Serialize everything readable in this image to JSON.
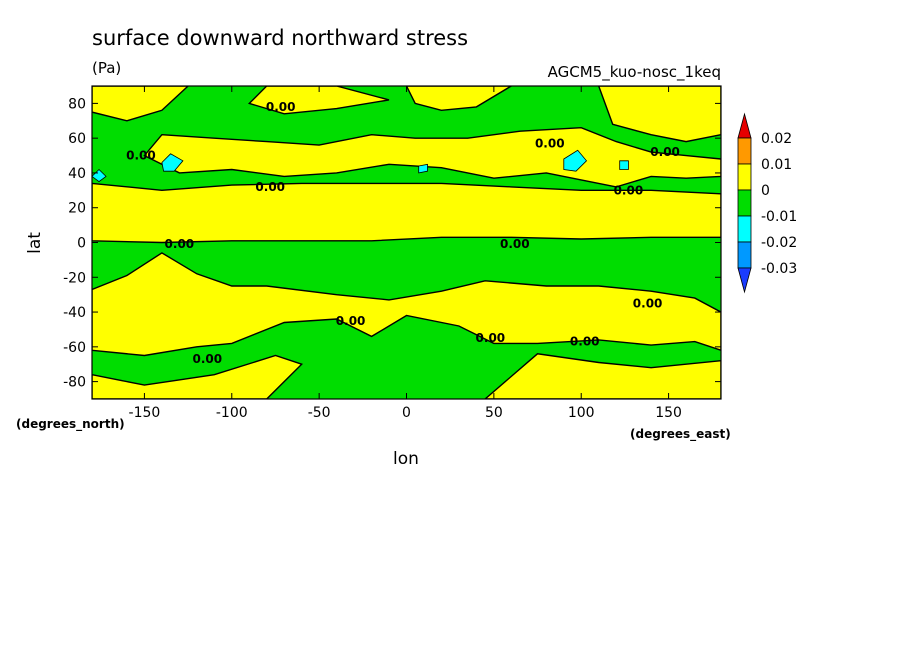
{
  "chart_data": {
    "type": "heatmap",
    "title": "surface downward northward stress",
    "units_label": "(Pa)",
    "dataset_label": "AGCM5_kuo-nosc_1keq",
    "xlabel": "lon",
    "ylabel": "lat",
    "x_units": "(degrees_east)",
    "y_units": "(degrees_north)",
    "xlim": [
      -180,
      180
    ],
    "ylim": [
      -90,
      90
    ],
    "x_ticks": [
      -150,
      -100,
      -50,
      0,
      50,
      100,
      150
    ],
    "y_ticks": [
      80,
      60,
      40,
      20,
      0,
      -20,
      -40,
      -60,
      -80
    ],
    "legend": {
      "placement": "right",
      "levels": [
        "0.02",
        "0.01",
        "0",
        "-0.01",
        "-0.02",
        "-0.03"
      ],
      "colors": [
        {
          "range": [
            0.015,
            0.025
          ],
          "color": "#e60000"
        },
        {
          "range": [
            0.005,
            0.015
          ],
          "color": "#ff9900"
        },
        {
          "range": [
            0.0,
            0.005
          ],
          "color": "#ffff00"
        },
        {
          "range": [
            -0.005,
            0.0
          ],
          "color": "#00dd00"
        },
        {
          "range": [
            -0.015,
            -0.005
          ],
          "color": "#00ffff"
        },
        {
          "range": [
            -0.025,
            -0.015
          ],
          "color": "#0099ff"
        },
        {
          "range": [
            -0.035,
            -0.025
          ],
          "color": "#1a3cff"
        }
      ]
    },
    "zero_contour_labels": [
      {
        "text": "0.00",
        "lon": -72,
        "lat": 78
      },
      {
        "text": "0.00",
        "lon": -152,
        "lat": 50
      },
      {
        "text": "0.00",
        "lon": -78,
        "lat": 32
      },
      {
        "text": "0.00",
        "lon": 82,
        "lat": 57
      },
      {
        "text": "0.00",
        "lon": 148,
        "lat": 52
      },
      {
        "text": "0.00",
        "lon": 127,
        "lat": 30
      },
      {
        "text": "0.00",
        "lon": -130,
        "lat": -1
      },
      {
        "text": "0.00",
        "lon": 62,
        "lat": -1
      },
      {
        "text": "0.00",
        "lon": -32,
        "lat": -45
      },
      {
        "text": "0.00",
        "lon": 48,
        "lat": -55
      },
      {
        "text": "0.00",
        "lon": 102,
        "lat": -57
      },
      {
        "text": "0.00",
        "lon": 138,
        "lat": -35
      },
      {
        "text": "0.00",
        "lon": -114,
        "lat": -67
      }
    ],
    "fields": {
      "positive": [
        {
          "polygon": [
            [
              -180,
              34
            ],
            [
              -140,
              30
            ],
            [
              -100,
              33
            ],
            [
              -60,
              34
            ],
            [
              -20,
              34
            ],
            [
              20,
              34
            ],
            [
              60,
              32
            ],
            [
              100,
              30
            ],
            [
              140,
              30
            ],
            [
              180,
              28
            ],
            [
              180,
              3
            ],
            [
              140,
              3
            ],
            [
              100,
              2
            ],
            [
              60,
              3
            ],
            [
              20,
              3
            ],
            [
              -20,
              1
            ],
            [
              -60,
              1
            ],
            [
              -100,
              1
            ],
            [
              -140,
              0
            ],
            [
              -180,
              1
            ]
          ]
        },
        {
          "polygon": [
            [
              -180,
              -27
            ],
            [
              -160,
              -19
            ],
            [
              -140,
              -6
            ],
            [
              -120,
              -18
            ],
            [
              -100,
              -25
            ],
            [
              -80,
              -25
            ],
            [
              -40,
              -30
            ],
            [
              -10,
              -33
            ],
            [
              20,
              -28
            ],
            [
              45,
              -22
            ],
            [
              80,
              -25
            ],
            [
              110,
              -25
            ],
            [
              140,
              -28
            ],
            [
              165,
              -32
            ],
            [
              180,
              -40
            ],
            [
              180,
              -62
            ],
            [
              165,
              -57
            ],
            [
              140,
              -59
            ],
            [
              110,
              -56
            ],
            [
              75,
              -58
            ],
            [
              50,
              -58
            ],
            [
              30,
              -48
            ],
            [
              0,
              -42
            ],
            [
              -20,
              -54
            ],
            [
              -40,
              -44
            ],
            [
              -70,
              -46
            ],
            [
              -100,
              -58
            ],
            [
              -120,
              -60
            ],
            [
              -150,
              -65
            ],
            [
              -180,
              -62
            ]
          ]
        },
        {
          "polygon": [
            [
              -180,
              -76
            ],
            [
              -150,
              -82
            ],
            [
              -110,
              -76
            ],
            [
              -75,
              -65
            ],
            [
              -60,
              -70
            ],
            [
              -80,
              -90
            ],
            [
              -180,
              -90
            ]
          ]
        },
        {
          "polygon": [
            [
              45,
              -90
            ],
            [
              75,
              -64
            ],
            [
              110,
              -69
            ],
            [
              140,
              -72
            ],
            [
              180,
              -68
            ],
            [
              180,
              -90
            ]
          ]
        },
        {
          "polygon": [
            [
              -80,
              90
            ],
            [
              -40,
              90
            ],
            [
              -10,
              82
            ],
            [
              -40,
              77
            ],
            [
              -70,
              74
            ],
            [
              -90,
              80
            ]
          ]
        },
        {
          "polygon": [
            [
              -160,
              90
            ],
            [
              -125,
              90
            ],
            [
              -140,
              76
            ],
            [
              -160,
              70
            ],
            [
              -180,
              75
            ],
            [
              -180,
              90
            ]
          ]
        },
        {
          "polygon": [
            [
              -140,
              62
            ],
            [
              -110,
              60
            ],
            [
              -80,
              58
            ],
            [
              -50,
              56
            ],
            [
              -20,
              62
            ],
            [
              5,
              60
            ],
            [
              35,
              60
            ],
            [
              65,
              64
            ],
            [
              100,
              66
            ],
            [
              120,
              58
            ],
            [
              140,
              52
            ],
            [
              160,
              50
            ],
            [
              180,
              48
            ],
            [
              180,
              38
            ],
            [
              160,
              37
            ],
            [
              140,
              38
            ],
            [
              120,
              32
            ],
            [
              100,
              36
            ],
            [
              80,
              40
            ],
            [
              50,
              37
            ],
            [
              20,
              43
            ],
            [
              -10,
              45
            ],
            [
              -40,
              40
            ],
            [
              -70,
              38
            ],
            [
              -100,
              42
            ],
            [
              -130,
              40
            ],
            [
              -150,
              50
            ]
          ]
        },
        {
          "polygon": [
            [
              110,
              90
            ],
            [
              180,
              90
            ],
            [
              180,
              62
            ],
            [
              160,
              58
            ],
            [
              140,
              62
            ],
            [
              118,
              68
            ]
          ]
        },
        {
          "polygon": [
            [
              0,
              90
            ],
            [
              60,
              90
            ],
            [
              40,
              78
            ],
            [
              20,
              76
            ],
            [
              5,
              80
            ]
          ]
        }
      ],
      "negative_strong": [
        {
          "polygon": [
            [
              -140,
              46
            ],
            [
              -135,
              51
            ],
            [
              -128,
              47
            ],
            [
              -133,
              41
            ],
            [
              -139,
              41
            ]
          ]
        },
        {
          "polygon": [
            [
              90,
              48
            ],
            [
              98,
              53
            ],
            [
              103,
              47
            ],
            [
              97,
              41
            ],
            [
              90,
              42
            ]
          ]
        },
        {
          "polygon": [
            [
              -180,
              38
            ],
            [
              -176,
              42
            ],
            [
              -172,
              38
            ],
            [
              -176,
              35
            ]
          ]
        },
        {
          "polygon": [
            [
              7,
              44
            ],
            [
              12,
              45
            ],
            [
              12,
              41
            ],
            [
              7,
              40
            ]
          ]
        },
        {
          "polygon": [
            [
              122,
              47
            ],
            [
              127,
              47
            ],
            [
              127,
              42
            ],
            [
              122,
              42
            ]
          ]
        }
      ]
    }
  }
}
